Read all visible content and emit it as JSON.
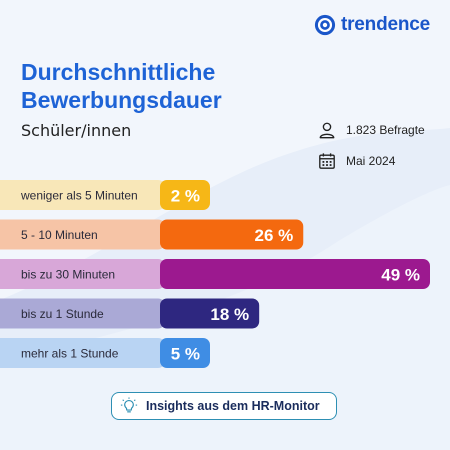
{
  "brand": {
    "name": "trendence",
    "color": "#1a56c9"
  },
  "title": "Durchschnittliche Bewerbungsdauer",
  "subtitle": "Schüler/innen",
  "meta": {
    "respondents": "1.823 Befragte",
    "date": "Mai 2024",
    "icons": [
      "person-icon",
      "calendar-icon"
    ]
  },
  "cta": {
    "label": "Insights aus dem HR-Monitor",
    "icon": "lightbulb-icon"
  },
  "chart_data": {
    "type": "bar",
    "orientation": "horizontal",
    "categories": [
      "weniger als 5 Minuten",
      "5 - 10 Minuten",
      "bis zu 30 Minuten",
      "bis zu 1 Stunde",
      "mehr als 1 Stunde"
    ],
    "values": [
      2,
      26,
      49,
      18,
      5
    ],
    "value_labels": [
      "2 %",
      "26 %",
      "49 %",
      "18 %",
      "5 %"
    ],
    "unit": "%",
    "xlim": [
      0,
      49
    ],
    "grid": false,
    "legend": "none",
    "colors": {
      "label_bg": [
        "#f8e7b8",
        "#f6c4a6",
        "#d8a7d8",
        "#aaa9d6",
        "#b9d4f3"
      ],
      "bar": [
        "#f6b717",
        "#f4690f",
        "#9c198f",
        "#2e2780",
        "#3f8de4"
      ]
    }
  }
}
